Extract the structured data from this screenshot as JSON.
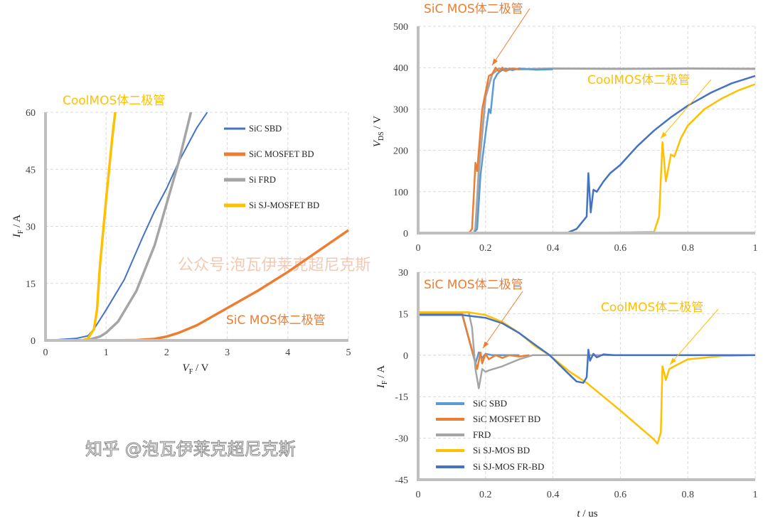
{
  "colors": {
    "sic_sbd": "#5B9BD5",
    "sic_sbd_iv": "#4472C4",
    "sic_mosfet_bd": "#ED7D31",
    "frd": "#A5A5A5",
    "si_sj_mos_bd": "#FFC000",
    "si_sj_mos_fr_bd": "#4472C4",
    "axis": "#BFBFBF",
    "grid": "#D9D9D9"
  },
  "watermarks": {
    "center": "公众号:泡瓦伊莱克超尼克斯",
    "bottom": "知乎 @泡瓦伊莱克超尼克斯"
  },
  "chart_data": [
    {
      "type": "line",
      "xlabel": {
        "main": "V",
        "sub": "F",
        "unit": " / V"
      },
      "ylabel": {
        "main": "I",
        "sub": "F",
        "unit": " / A"
      },
      "xlim": [
        0,
        5
      ],
      "ylim": [
        0,
        60
      ],
      "xticks": [
        "0",
        "1",
        "2",
        "3",
        "4",
        "5"
      ],
      "yticks": [
        "0",
        "15",
        "30",
        "45",
        "60"
      ],
      "grid": true,
      "legend": "top-right",
      "annotations": [
        "CoolMOS体二极管",
        "SiC MOS体二极管"
      ],
      "series": [
        {
          "name": "SiC SBD",
          "color_key": "sic_sbd_iv",
          "points": [
            [
              0,
              0
            ],
            [
              0.5,
              0.5
            ],
            [
              0.7,
              1.2
            ],
            [
              0.8,
              3
            ],
            [
              1,
              8
            ],
            [
              1.3,
              16
            ],
            [
              1.6,
              27
            ],
            [
              1.8,
              34
            ],
            [
              2,
              40
            ],
            [
              2.2,
              47
            ],
            [
              2.5,
              56
            ],
            [
              2.67,
              60
            ]
          ]
        },
        {
          "name": "SiC MOSFET BD",
          "color_key": "sic_mosfet_bd",
          "points": [
            [
              0,
              0
            ],
            [
              1,
              0
            ],
            [
              1.5,
              0.1
            ],
            [
              1.8,
              0.4
            ],
            [
              2,
              1
            ],
            [
              2.2,
              2
            ],
            [
              2.5,
              4
            ],
            [
              3,
              8.5
            ],
            [
              3.5,
              13
            ],
            [
              4,
              18
            ],
            [
              4.5,
              23.5
            ],
            [
              5,
              29
            ]
          ]
        },
        {
          "name": "Si FRD",
          "color_key": "frd",
          "points": [
            [
              0,
              0
            ],
            [
              0.7,
              0.1
            ],
            [
              0.9,
              1
            ],
            [
              1,
              2
            ],
            [
              1.2,
              5
            ],
            [
              1.5,
              13
            ],
            [
              1.8,
              25
            ],
            [
              2,
              36
            ],
            [
              2.2,
              47
            ],
            [
              2.4,
              60
            ]
          ]
        },
        {
          "name": "Si SJ-MOSFET BD",
          "color_key": "si_sj_mos_bd",
          "points": [
            [
              0,
              0
            ],
            [
              0.6,
              0
            ],
            [
              0.7,
              0.5
            ],
            [
              0.8,
              3
            ],
            [
              0.85,
              8
            ],
            [
              0.9,
              20
            ],
            [
              1,
              37
            ],
            [
              1.1,
              53
            ],
            [
              1.15,
              60
            ]
          ]
        }
      ]
    },
    {
      "type": "line",
      "xlabel": null,
      "ylabel": {
        "main": "V",
        "sub": "DS",
        "unit": " / V"
      },
      "xlim": [
        0,
        1
      ],
      "ylim": [
        0,
        500
      ],
      "xticks": [
        "0",
        "0.2",
        "0.4",
        "0.6",
        "0.8",
        "1"
      ],
      "yticks": [
        "0",
        "100",
        "200",
        "300",
        "400",
        "500"
      ],
      "grid": true,
      "annotations": [
        "SiC MOS体二极管",
        "CoolMOS体二极管"
      ],
      "series": [
        {
          "color_key": "frd",
          "points": [
            [
              0,
              0
            ],
            [
              0.165,
              0
            ],
            [
              0.17,
              10
            ],
            [
              0.18,
              150
            ],
            [
              0.2,
              330
            ],
            [
              0.22,
              385
            ],
            [
              0.24,
              398
            ],
            [
              0.26,
              392
            ],
            [
              0.28,
              398
            ],
            [
              0.3,
              396
            ],
            [
              0.4,
              398
            ],
            [
              0.6,
              397
            ],
            [
              0.8,
              398
            ],
            [
              1,
              397
            ]
          ]
        },
        {
          "color_key": "sic_sbd",
          "points": [
            [
              0,
              0
            ],
            [
              0.165,
              0
            ],
            [
              0.175,
              10
            ],
            [
              0.185,
              140
            ],
            [
              0.19,
              175
            ],
            [
              0.2,
              240
            ],
            [
              0.21,
              300
            ],
            [
              0.215,
              290
            ],
            [
              0.225,
              370
            ],
            [
              0.235,
              385
            ],
            [
              0.245,
              392
            ],
            [
              0.26,
              398
            ],
            [
              0.28,
              394
            ],
            [
              0.3,
              398
            ],
            [
              0.35,
              395
            ],
            [
              0.4,
              396
            ]
          ]
        },
        {
          "color_key": "sic_mosfet_bd",
          "points": [
            [
              0,
              0
            ],
            [
              0.15,
              0
            ],
            [
              0.16,
              10
            ],
            [
              0.17,
              170
            ],
            [
              0.175,
              150
            ],
            [
              0.19,
              300
            ],
            [
              0.21,
              380
            ],
            [
              0.22,
              385
            ],
            [
              0.23,
              400
            ],
            [
              0.24,
              390
            ],
            [
              0.25,
              400
            ],
            [
              0.26,
              392
            ],
            [
              0.27,
              398
            ],
            [
              0.3,
              396
            ]
          ]
        },
        {
          "color_key": "si_sj_mos_bd",
          "points": [
            [
              0,
              0
            ],
            [
              0.45,
              0
            ],
            [
              0.7,
              3
            ],
            [
              0.715,
              40
            ],
            [
              0.725,
              220
            ],
            [
              0.735,
              125
            ],
            [
              0.75,
              190
            ],
            [
              0.76,
              185
            ],
            [
              0.78,
              230
            ],
            [
              0.8,
              260
            ],
            [
              0.85,
              300
            ],
            [
              0.9,
              325
            ],
            [
              0.95,
              345
            ],
            [
              1,
              360
            ]
          ]
        },
        {
          "color_key": "si_sj_mos_fr_bd",
          "points": [
            [
              0,
              0
            ],
            [
              0.44,
              0
            ],
            [
              0.47,
              10
            ],
            [
              0.5,
              40
            ],
            [
              0.505,
              145
            ],
            [
              0.512,
              50
            ],
            [
              0.52,
              105
            ],
            [
              0.53,
              100
            ],
            [
              0.55,
              125
            ],
            [
              0.57,
              145
            ],
            [
              0.6,
              165
            ],
            [
              0.65,
              210
            ],
            [
              0.7,
              248
            ],
            [
              0.75,
              280
            ],
            [
              0.8,
              308
            ],
            [
              0.87,
              340
            ],
            [
              0.93,
              362
            ],
            [
              1,
              380
            ]
          ]
        }
      ]
    },
    {
      "type": "line",
      "xlabel": {
        "main": "t",
        "sub": "",
        "unit": " / us"
      },
      "ylabel": {
        "main": "I",
        "sub": "F",
        "unit": " / A"
      },
      "xlim": [
        0,
        1
      ],
      "ylim": [
        -45,
        30
      ],
      "xticks": [
        "0",
        "0.2",
        "0.4",
        "0.6",
        "0.8",
        "1"
      ],
      "yticks": [
        "-45",
        "-30",
        "-15",
        "0",
        "15",
        "30"
      ],
      "grid": true,
      "legend": "bottom-left",
      "annotations": [
        "SiC MOS体二极管",
        "CoolMOS体二极管"
      ],
      "series": [
        {
          "name": "SiC SBD",
          "color_key": "sic_sbd",
          "points": [
            [
              0,
              15
            ],
            [
              0.13,
              15
            ],
            [
              0.17,
              -3
            ],
            [
              0.18,
              1
            ],
            [
              0.19,
              -1
            ],
            [
              0.2,
              0.5
            ],
            [
              0.22,
              0
            ],
            [
              0.3,
              0
            ]
          ]
        },
        {
          "name": "SiC MOSFET BD",
          "color_key": "sic_mosfet_bd",
          "points": [
            [
              0,
              15.3
            ],
            [
              0.13,
              15.3
            ],
            [
              0.175,
              -5
            ],
            [
              0.185,
              1
            ],
            [
              0.19,
              -3
            ],
            [
              0.2,
              0.5
            ],
            [
              0.21,
              -1.5
            ],
            [
              0.23,
              0
            ],
            [
              0.25,
              -1
            ],
            [
              0.27,
              0
            ],
            [
              0.3,
              -0.5
            ],
            [
              0.33,
              0
            ]
          ]
        },
        {
          "name": "FRD",
          "color_key": "frd",
          "points": [
            [
              0,
              15.5
            ],
            [
              0.15,
              15.5
            ],
            [
              0.16,
              10
            ],
            [
              0.17,
              -5
            ],
            [
              0.18,
              -12
            ],
            [
              0.19,
              -5
            ],
            [
              0.2,
              -6
            ],
            [
              0.21,
              -5.5
            ],
            [
              0.25,
              -4
            ],
            [
              0.3,
              -1.5
            ],
            [
              0.34,
              0
            ],
            [
              1,
              0
            ]
          ]
        },
        {
          "name": "Si SJ-MOS BD",
          "color_key": "si_sj_mos_bd",
          "points": [
            [
              0,
              15.5
            ],
            [
              0.15,
              15.5
            ],
            [
              0.2,
              14.5
            ],
            [
              0.25,
              12
            ],
            [
              0.3,
              8
            ],
            [
              0.35,
              3
            ],
            [
              0.39,
              0
            ],
            [
              0.45,
              -6
            ],
            [
              0.5,
              -10
            ],
            [
              0.6,
              -20
            ],
            [
              0.7,
              -30.5
            ],
            [
              0.71,
              -32
            ],
            [
              0.72,
              -28
            ],
            [
              0.725,
              -4
            ],
            [
              0.735,
              -9
            ],
            [
              0.745,
              -5
            ],
            [
              0.76,
              -4
            ],
            [
              0.8,
              -1.5
            ],
            [
              0.9,
              -0.3
            ],
            [
              1,
              0
            ]
          ]
        },
        {
          "name": "Si SJ-MOS FR-BD",
          "color_key": "si_sj_mos_fr_bd",
          "points": [
            [
              0,
              14.5
            ],
            [
              0.13,
              14.5
            ],
            [
              0.2,
              13.5
            ],
            [
              0.25,
              11.5
            ],
            [
              0.3,
              8
            ],
            [
              0.35,
              3.5
            ],
            [
              0.39,
              0
            ],
            [
              0.44,
              -6
            ],
            [
              0.47,
              -9.5
            ],
            [
              0.49,
              -10
            ],
            [
              0.5,
              -8
            ],
            [
              0.505,
              2
            ],
            [
              0.51,
              -2
            ],
            [
              0.52,
              0.5
            ],
            [
              0.53,
              -0.8
            ],
            [
              0.55,
              0.3
            ],
            [
              0.58,
              0
            ],
            [
              1,
              0
            ]
          ]
        }
      ]
    }
  ]
}
